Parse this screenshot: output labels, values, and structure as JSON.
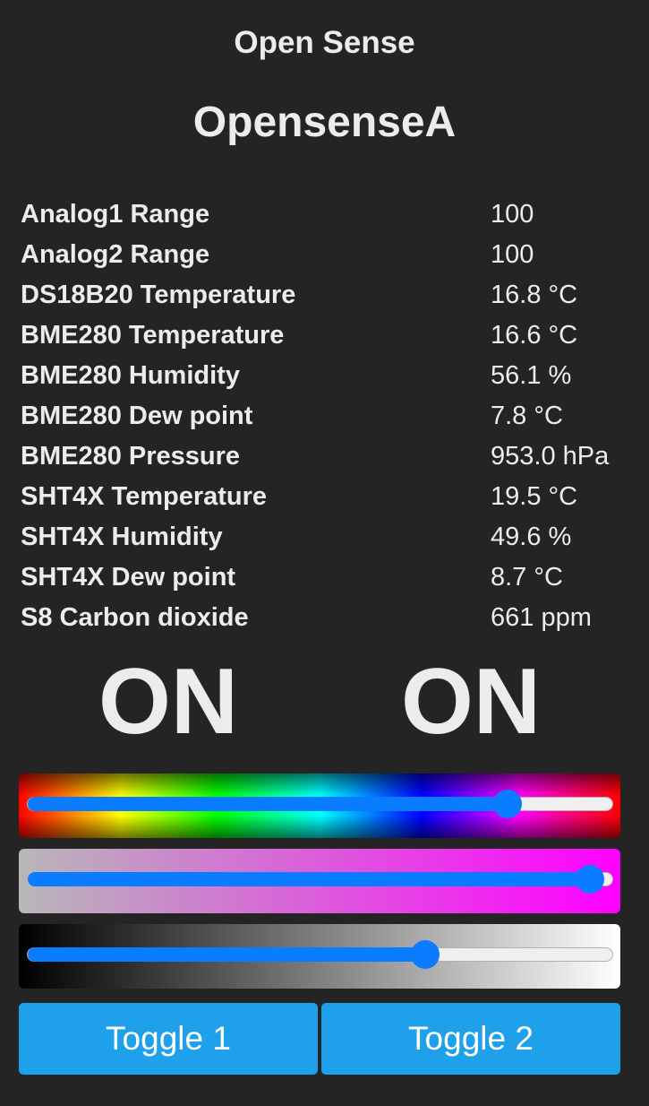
{
  "header": {
    "app_title": "Open Sense",
    "device_title": "OpensenseA"
  },
  "readings": [
    {
      "label": "Analog1 Range",
      "value": "100"
    },
    {
      "label": "Analog2 Range",
      "value": "100"
    },
    {
      "label": "DS18B20 Temperature",
      "value": "16.8 °C"
    },
    {
      "label": "BME280 Temperature",
      "value": "16.6 °C"
    },
    {
      "label": "BME280 Humidity",
      "value": "56.1 %"
    },
    {
      "label": "BME280 Dew point",
      "value": "7.8 °C"
    },
    {
      "label": "BME280 Pressure",
      "value": "953.0 hPa"
    },
    {
      "label": "SHT4X Temperature",
      "value": "19.5 °C"
    },
    {
      "label": "SHT4X Humidity",
      "value": "49.6 %"
    },
    {
      "label": "SHT4X Dew point",
      "value": "8.7 °C"
    },
    {
      "label": "S8 Carbon dioxide",
      "value": "661 ppm"
    }
  ],
  "switches": {
    "state1": "ON",
    "state2": "ON"
  },
  "sliders": {
    "hue": {
      "level": 0.82
    },
    "saturation": {
      "level": 0.96
    },
    "brightness": {
      "level": 0.68
    }
  },
  "buttons": {
    "toggle1_label": "Toggle 1",
    "toggle2_label": "Toggle 2"
  },
  "colors": {
    "background": "#242424",
    "text": "#ececec",
    "button": "#1ea0ea",
    "slider_accent": "#0a7cff"
  }
}
